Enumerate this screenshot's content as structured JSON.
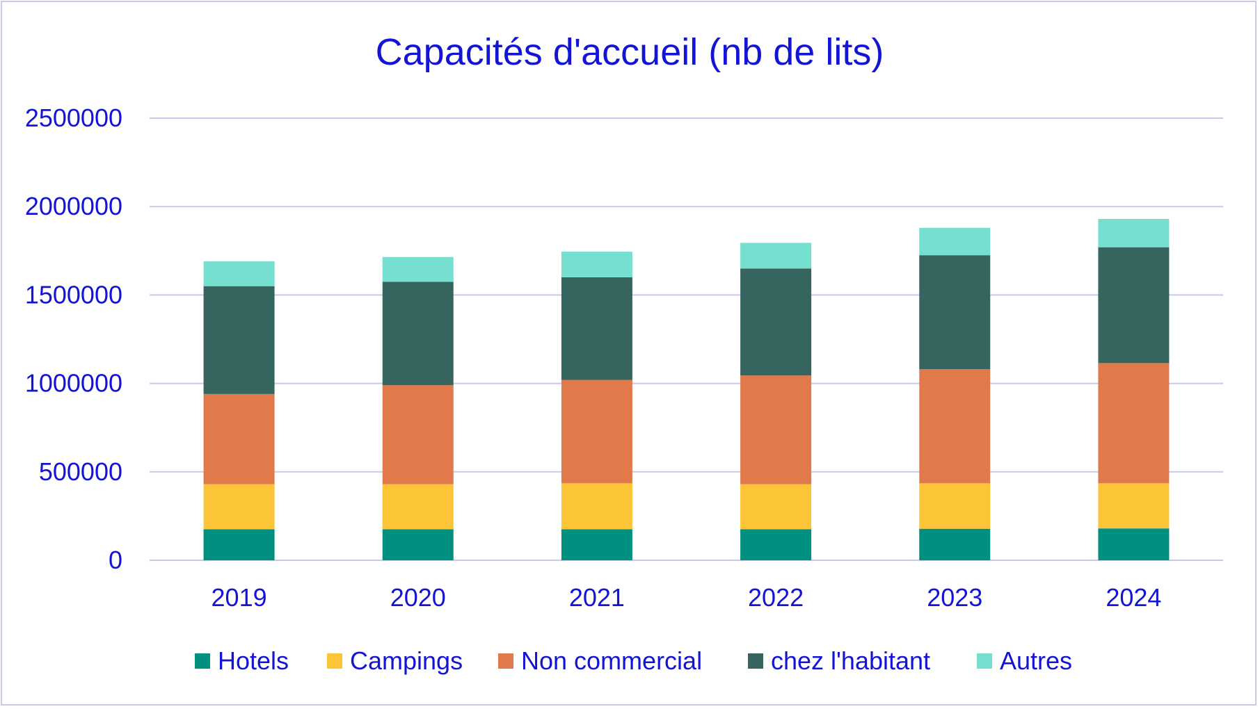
{
  "chart_data": {
    "type": "bar",
    "stacked": true,
    "title": "Capacités d'accueil (nb de lits)",
    "xlabel": "",
    "ylabel": "",
    "ylim": [
      0,
      2500000
    ],
    "yticks": [
      0,
      500000,
      1000000,
      1500000,
      2000000,
      2500000
    ],
    "ytick_labels": [
      "0",
      "500000",
      "1000000",
      "1500000",
      "2000000",
      "2500000"
    ],
    "grid": true,
    "legend_position": "bottom",
    "categories": [
      "2019",
      "2020",
      "2021",
      "2022",
      "2023",
      "2024"
    ],
    "series": [
      {
        "name": "Hotels",
        "color": "#009080",
        "values": [
          175000,
          175000,
          175000,
          175000,
          178000,
          180000
        ]
      },
      {
        "name": "Campings",
        "color": "#fbc537",
        "values": [
          255000,
          255000,
          260000,
          255000,
          257000,
          255000
        ]
      },
      {
        "name": "Non commercial",
        "color": "#e2794a",
        "values": [
          510000,
          560000,
          585000,
          615000,
          645000,
          680000
        ]
      },
      {
        "name": "chez l'habitant",
        "color": "#36655f",
        "values": [
          610000,
          585000,
          580000,
          605000,
          645000,
          655000
        ]
      },
      {
        "name": "Autres",
        "color": "#75dfd0",
        "values": [
          140000,
          140000,
          145000,
          145000,
          155000,
          160000
        ]
      }
    ]
  },
  "colors": {
    "text": "#1414d6",
    "gridline": "#c8c8ec",
    "frame": "#c8c8f0"
  }
}
